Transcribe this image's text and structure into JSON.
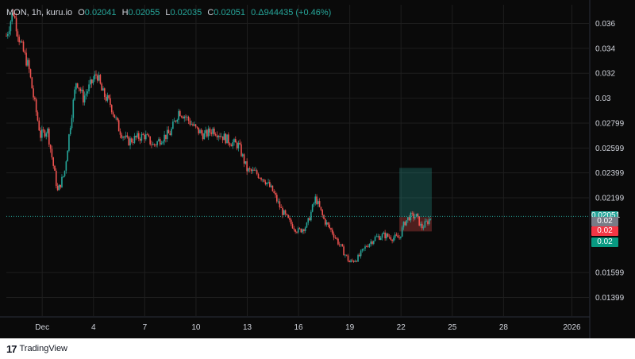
{
  "header": {
    "symbol": "MON, 1h, kuru.io",
    "o_label": "O",
    "o_value": "0.02041",
    "h_label": "H",
    "h_value": "0.02055",
    "l_label": "L",
    "l_value": "0.02035",
    "c_label": "C",
    "c_value": "0.02051",
    "change": "0.Δ944435 (+0.46%)"
  },
  "footer": {
    "logo_glyph": "17",
    "brand": "TradingView"
  },
  "colors": {
    "up": "#26a69a",
    "down": "#ef5350",
    "background": "#0a0a0a",
    "grid": "#1e1e1e",
    "axis_text": "#d1d4dc"
  },
  "price_labels": [
    {
      "text": "0.02051",
      "color": "#26a69a",
      "value": 0.02051
    },
    {
      "text": "0.02",
      "color": "#787b86",
      "value": 0.0201
    },
    {
      "text": "0.02",
      "color": "#f23645",
      "value": 0.0193
    },
    {
      "text": "0.02",
      "color": "#089981",
      "value": 0.0184
    }
  ],
  "chart_data": {
    "type": "candlestick",
    "y_ticks": [
      "0.036",
      "0.034",
      "0.032",
      "0.03",
      "0.02799",
      "0.02599",
      "0.02399",
      "0.02199",
      "0.01599",
      "0.01399"
    ],
    "y_tick_values": [
      0.036,
      0.034,
      0.032,
      0.03,
      0.028,
      0.026,
      0.024,
      0.022,
      0.016,
      0.014
    ],
    "ylim": [
      0.0125,
      0.0375
    ],
    "x_ticks": [
      "Dec",
      "4",
      "7",
      "10",
      "13",
      "16",
      "19",
      "22",
      "25",
      "28",
      "2026"
    ],
    "x_tick_days": [
      1,
      4,
      7,
      10,
      13,
      16,
      19,
      22,
      25,
      28,
      32
    ],
    "xlim_days": [
      -1.1,
      33.0
    ],
    "last_price": 0.02051,
    "position": {
      "start_day": 21.9,
      "end_day": 23.8,
      "entry": 0.02045,
      "target": 0.0244,
      "stop": 0.0193
    },
    "daily_close": [
      [
        -1.1,
        0.035
      ],
      [
        -0.7,
        0.037
      ],
      [
        -0.3,
        0.0345
      ],
      [
        0.2,
        0.0325
      ],
      [
        0.5,
        0.03
      ],
      [
        0.9,
        0.027
      ],
      [
        1.3,
        0.0275
      ],
      [
        1.6,
        0.025
      ],
      [
        1.9,
        0.0225
      ],
      [
        2.3,
        0.024
      ],
      [
        2.7,
        0.0285
      ],
      [
        3.0,
        0.0315
      ],
      [
        3.4,
        0.03
      ],
      [
        3.8,
        0.031
      ],
      [
        4.2,
        0.032
      ],
      [
        4.5,
        0.0305
      ],
      [
        5.0,
        0.0295
      ],
      [
        5.5,
        0.0275
      ],
      [
        6.0,
        0.0265
      ],
      [
        6.5,
        0.0268
      ],
      [
        7.0,
        0.027
      ],
      [
        7.5,
        0.0262
      ],
      [
        8.0,
        0.0268
      ],
      [
        8.5,
        0.0272
      ],
      [
        9.0,
        0.029
      ],
      [
        9.4,
        0.0285
      ],
      [
        10.0,
        0.0275
      ],
      [
        10.5,
        0.027
      ],
      [
        11.0,
        0.0275
      ],
      [
        11.5,
        0.027
      ],
      [
        12.0,
        0.0265
      ],
      [
        12.5,
        0.0262
      ],
      [
        13.0,
        0.0242
      ],
      [
        13.5,
        0.024
      ],
      [
        14.0,
        0.0235
      ],
      [
        14.5,
        0.0225
      ],
      [
        15.0,
        0.021
      ],
      [
        15.5,
        0.02
      ],
      [
        16.0,
        0.0193
      ],
      [
        16.5,
        0.0198
      ],
      [
        17.0,
        0.022
      ],
      [
        17.5,
        0.0202
      ],
      [
        18.0,
        0.0192
      ],
      [
        18.5,
        0.018
      ],
      [
        19.0,
        0.0168
      ],
      [
        19.5,
        0.0172
      ],
      [
        20.0,
        0.0182
      ],
      [
        20.5,
        0.0188
      ],
      [
        21.0,
        0.019
      ],
      [
        21.5,
        0.0188
      ],
      [
        21.9,
        0.0188
      ],
      [
        22.2,
        0.02
      ],
      [
        22.5,
        0.0205
      ],
      [
        22.9,
        0.0205
      ],
      [
        23.2,
        0.0196
      ],
      [
        23.5,
        0.02
      ],
      [
        23.8,
        0.02051
      ]
    ]
  }
}
